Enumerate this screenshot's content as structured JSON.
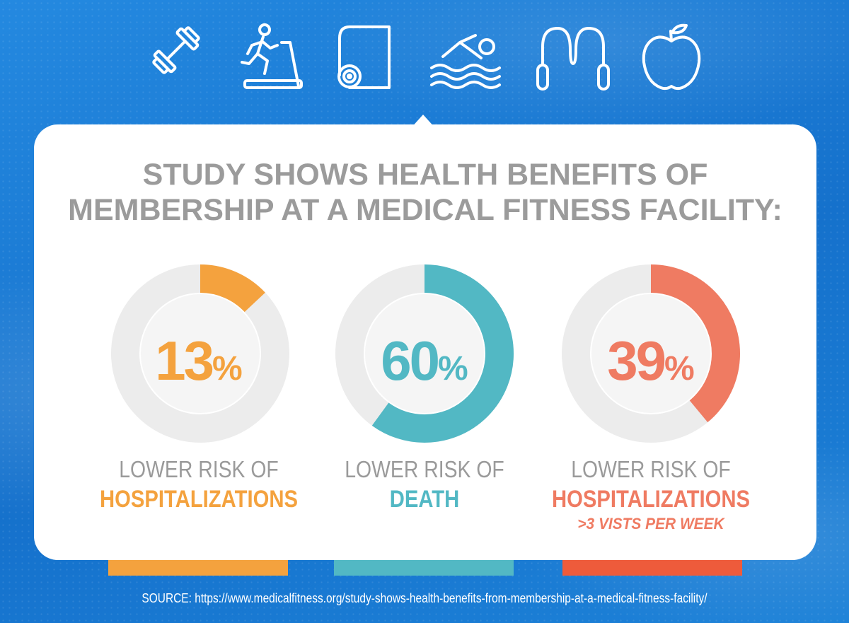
{
  "colors": {
    "background": "#1c7fd6",
    "card": "#ffffff",
    "title": "#9b9b9b",
    "track": "#ececec",
    "orange": "#f4a23e",
    "teal": "#52b8c4",
    "coral": "#ef7b62",
    "bar_coral": "#ee5b3b"
  },
  "icons": [
    "dumbbell-icon",
    "treadmill-icon",
    "yoga-mat-icon",
    "swimmer-icon",
    "jump-rope-icon",
    "apple-icon"
  ],
  "title": {
    "line1": "STUDY SHOWS HEALTH BENEFITS OF",
    "line2": "MEMBERSHIP AT A MEDICAL FITNESS FACILITY:"
  },
  "stats": [
    {
      "value": 13,
      "number": "13",
      "percent_sign": "%",
      "label_line1": "LOWER RISK OF",
      "label_line2": "HOSPITALIZATIONS",
      "label_line3": "",
      "color": "#f4a23e"
    },
    {
      "value": 60,
      "number": "60",
      "percent_sign": "%",
      "label_line1": "LOWER RISK OF",
      "label_line2": "DEATH",
      "label_line3": "",
      "color": "#52b8c4"
    },
    {
      "value": 39,
      "number": "39",
      "percent_sign": "%",
      "label_line1": "LOWER RISK OF",
      "label_line2": "HOSPITALIZATIONS",
      "label_line3": ">3 VISTS PER WEEK",
      "color": "#ef7b62"
    }
  ],
  "source": "SOURCE: https://www.medicalfitness.org/study-shows-health-benefits-from-membership-at-a-medical-fitness-facility/"
}
